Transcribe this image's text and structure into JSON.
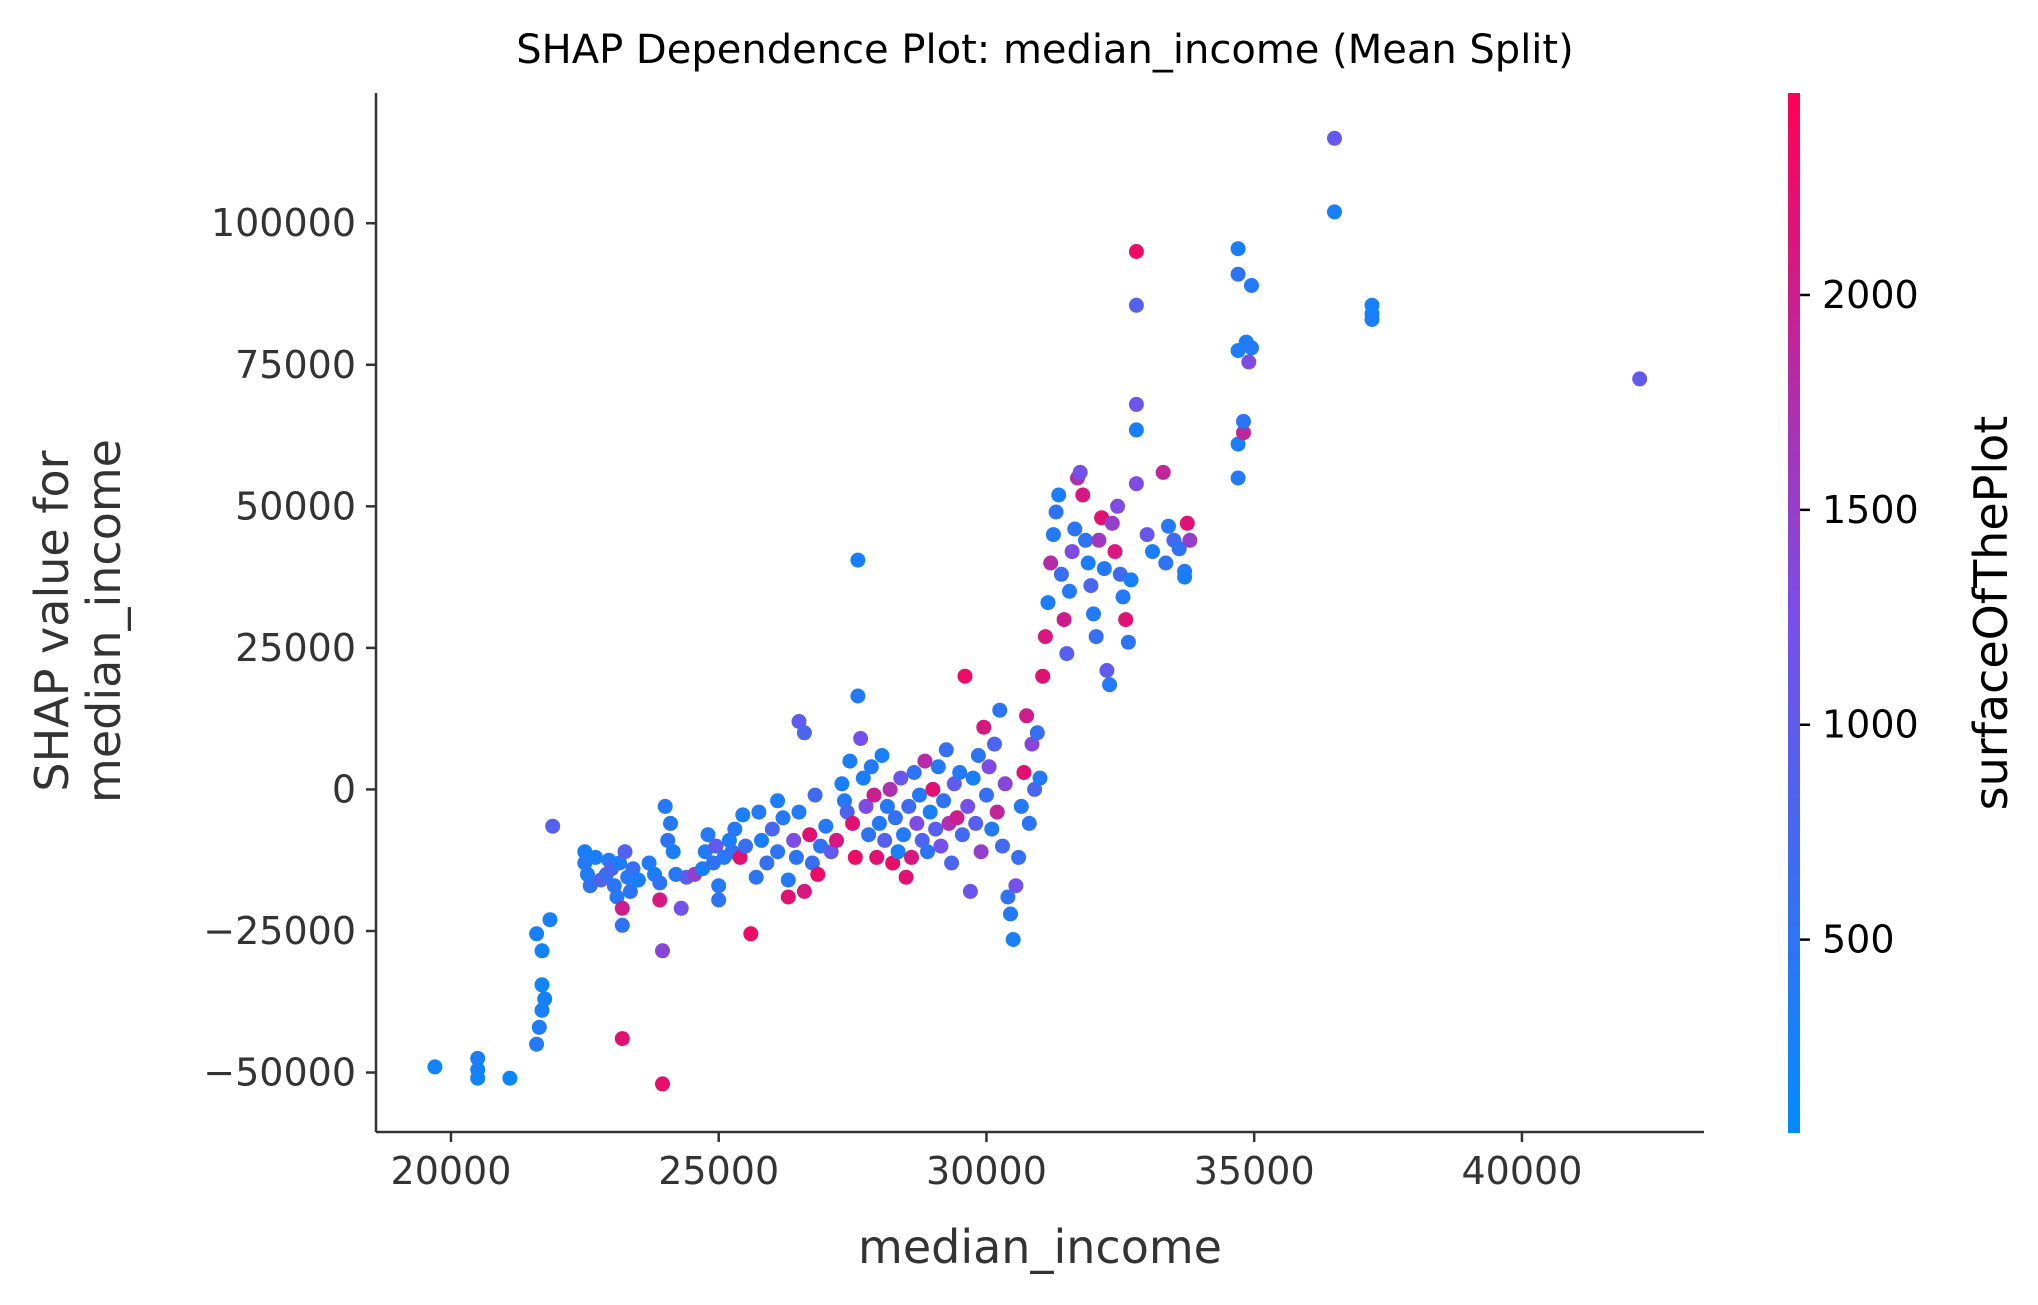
{
  "chart_data": {
    "type": "scatter",
    "title": "SHAP Dependence Plot: median_income (Mean Split)",
    "xlabel": "median_income",
    "ylabel_lines": [
      "SHAP value for",
      "median_income"
    ],
    "xlim": [
      18600,
      43400
    ],
    "ylim": [
      -60500,
      123000
    ],
    "xticks": [
      20000,
      25000,
      30000,
      35000,
      40000
    ],
    "xtick_labels": [
      "20000",
      "25000",
      "30000",
      "35000",
      "40000"
    ],
    "yticks": [
      -50000,
      -25000,
      0,
      25000,
      50000,
      75000,
      100000
    ],
    "ytick_labels": [
      "−50000",
      "−25000",
      "0",
      "25000",
      "50000",
      "75000",
      "100000"
    ],
    "grid": false,
    "colorbar": {
      "label": "surfaceOfThePlot",
      "range": [
        50,
        2470
      ],
      "ticks": [
        500,
        1000,
        1500,
        2000
      ],
      "tick_labels": [
        "500",
        "1000",
        "1500",
        "2000"
      ],
      "color_low": "#008bfb",
      "color_high": "#ff0052"
    },
    "points": [
      [
        19700,
        -49000,
        200
      ],
      [
        20500,
        -47500,
        300
      ],
      [
        20500,
        -49500,
        250
      ],
      [
        20500,
        -51000,
        200
      ],
      [
        21100,
        -51000,
        150
      ],
      [
        21600,
        -45000,
        400
      ],
      [
        21650,
        -42000,
        350
      ],
      [
        21700,
        -39000,
        300
      ],
      [
        21750,
        -37000,
        250
      ],
      [
        21700,
        -34500,
        200
      ],
      [
        21600,
        -25500,
        300
      ],
      [
        21700,
        -28500,
        250
      ],
      [
        21850,
        -23000,
        300
      ],
      [
        21900,
        -6500,
        900
      ],
      [
        22500,
        -11000,
        300
      ],
      [
        22500,
        -13000,
        400
      ],
      [
        22550,
        -15000,
        350
      ],
      [
        22600,
        -17000,
        500
      ],
      [
        22700,
        -12000,
        300
      ],
      [
        22800,
        -16000,
        900
      ],
      [
        22900,
        -15000,
        600
      ],
      [
        22950,
        -12500,
        400
      ],
      [
        23000,
        -14000,
        800
      ],
      [
        23050,
        -17000,
        500
      ],
      [
        23100,
        -19000,
        400
      ],
      [
        23150,
        -13000,
        350
      ],
      [
        23200,
        -21000,
        2000
      ],
      [
        23200,
        -24000,
        500
      ],
      [
        23200,
        -44000,
        2200
      ],
      [
        23250,
        -11000,
        900
      ],
      [
        23300,
        -15500,
        400
      ],
      [
        23350,
        -18000,
        500
      ],
      [
        23400,
        -14000,
        600
      ],
      [
        23500,
        -16000,
        300
      ],
      [
        23700,
        -13000,
        400
      ],
      [
        23800,
        -15000,
        300
      ],
      [
        23900,
        -16500,
        500
      ],
      [
        23900,
        -19500,
        2100
      ],
      [
        23950,
        -28500,
        1400
      ],
      [
        23950,
        -52000,
        2250
      ],
      [
        24000,
        -3000,
        400
      ],
      [
        24100,
        -6000,
        400
      ],
      [
        24050,
        -9000,
        500
      ],
      [
        24150,
        -11000,
        300
      ],
      [
        24200,
        -15000,
        400
      ],
      [
        24300,
        -21000,
        1200
      ],
      [
        24400,
        -15500,
        900
      ],
      [
        24550,
        -15000,
        1500
      ],
      [
        24700,
        -14000,
        300
      ],
      [
        24750,
        -11000,
        400
      ],
      [
        24800,
        -8000,
        400
      ],
      [
        24900,
        -13000,
        500
      ],
      [
        24950,
        -10000,
        1000
      ],
      [
        25000,
        -17000,
        400
      ],
      [
        25000,
        -19500,
        500
      ],
      [
        25100,
        -12000,
        400
      ],
      [
        25200,
        -9000,
        300
      ],
      [
        25250,
        -11000,
        500
      ],
      [
        25300,
        -7000,
        400
      ],
      [
        25400,
        -12000,
        2200
      ],
      [
        25450,
        -4500,
        300
      ],
      [
        25500,
        -10000,
        600
      ],
      [
        25600,
        -25500,
        2300
      ],
      [
        25700,
        -15500,
        500
      ],
      [
        25750,
        -4000,
        400
      ],
      [
        25800,
        -9000,
        300
      ],
      [
        25900,
        -13000,
        600
      ],
      [
        26000,
        -7000,
        800
      ],
      [
        26100,
        -11000,
        500
      ],
      [
        26100,
        -2000,
        300
      ],
      [
        26200,
        -5000,
        400
      ],
      [
        26300,
        -19000,
        2200
      ],
      [
        26300,
        -16000,
        400
      ],
      [
        26400,
        -9000,
        1300
      ],
      [
        26450,
        -12000,
        500
      ],
      [
        26500,
        -4000,
        400
      ],
      [
        26500,
        12000,
        1000
      ],
      [
        26600,
        -18000,
        2100
      ],
      [
        26600,
        10000,
        800
      ],
      [
        26700,
        -8000,
        2200
      ],
      [
        26750,
        -13000,
        600
      ],
      [
        26800,
        -1000,
        700
      ],
      [
        26850,
        -15000,
        2300
      ],
      [
        26900,
        -10000,
        500
      ],
      [
        27000,
        -6500,
        400
      ],
      [
        27100,
        -11000,
        1000
      ],
      [
        27200,
        -9000,
        2100
      ],
      [
        27300,
        1000,
        300
      ],
      [
        27350,
        -2000,
        400
      ],
      [
        27400,
        -4000,
        800
      ],
      [
        27450,
        5000,
        300
      ],
      [
        27500,
        -6000,
        2200
      ],
      [
        27550,
        -12000,
        2300
      ],
      [
        27600,
        40500,
        300
      ],
      [
        27600,
        16500,
        400
      ],
      [
        27650,
        9000,
        1200
      ],
      [
        27700,
        2000,
        300
      ],
      [
        27750,
        -3000,
        1300
      ],
      [
        27800,
        -8000,
        500
      ],
      [
        27850,
        4000,
        400
      ],
      [
        27900,
        -1000,
        2000
      ],
      [
        27950,
        -12000,
        2200
      ],
      [
        28000,
        -6000,
        400
      ],
      [
        28050,
        6000,
        300
      ],
      [
        28100,
        -9000,
        900
      ],
      [
        28150,
        -3000,
        400
      ],
      [
        28200,
        0,
        1700
      ],
      [
        28250,
        -13000,
        2300
      ],
      [
        28300,
        -5000,
        600
      ],
      [
        28350,
        -11000,
        300
      ],
      [
        28400,
        2000,
        1100
      ],
      [
        28450,
        -8000,
        400
      ],
      [
        28500,
        -15500,
        2200
      ],
      [
        28550,
        -3000,
        700
      ],
      [
        28600,
        -12000,
        2100
      ],
      [
        28650,
        3000,
        500
      ],
      [
        28700,
        -6000,
        1300
      ],
      [
        28750,
        -1000,
        400
      ],
      [
        28800,
        -9000,
        800
      ],
      [
        28850,
        5000,
        1800
      ],
      [
        28900,
        -11000,
        500
      ],
      [
        28950,
        -4000,
        300
      ],
      [
        29000,
        0,
        2200
      ],
      [
        29050,
        -7000,
        900
      ],
      [
        29100,
        4000,
        400
      ],
      [
        29150,
        -10000,
        1200
      ],
      [
        29200,
        -2000,
        500
      ],
      [
        29250,
        7000,
        600
      ],
      [
        29300,
        -6000,
        1700
      ],
      [
        29350,
        -13000,
        800
      ],
      [
        29400,
        1000,
        1000
      ],
      [
        29450,
        -5000,
        2000
      ],
      [
        29500,
        3000,
        400
      ],
      [
        29550,
        -8000,
        700
      ],
      [
        29600,
        20000,
        2300
      ],
      [
        29650,
        -3000,
        1200
      ],
      [
        29700,
        -18000,
        1100
      ],
      [
        29750,
        2000,
        300
      ],
      [
        29800,
        -6000,
        900
      ],
      [
        29850,
        6000,
        500
      ],
      [
        29900,
        -11000,
        1500
      ],
      [
        29950,
        11000,
        2100
      ],
      [
        30000,
        -1000,
        600
      ],
      [
        30050,
        4000,
        1300
      ],
      [
        30100,
        -7000,
        400
      ],
      [
        30150,
        8000,
        800
      ],
      [
        30200,
        -4000,
        1900
      ],
      [
        30250,
        14000,
        500
      ],
      [
        30300,
        -10000,
        700
      ],
      [
        30350,
        1000,
        1400
      ],
      [
        30400,
        -19000,
        500
      ],
      [
        30450,
        -22000,
        400
      ],
      [
        30500,
        -26500,
        300
      ],
      [
        30550,
        -17000,
        1200
      ],
      [
        30600,
        -12000,
        600
      ],
      [
        30650,
        -3000,
        400
      ],
      [
        30700,
        3000,
        2200
      ],
      [
        30750,
        13000,
        2000
      ],
      [
        30800,
        -6000,
        500
      ],
      [
        30850,
        8000,
        1400
      ],
      [
        30900,
        0,
        800
      ],
      [
        30950,
        10000,
        600
      ],
      [
        31000,
        2000,
        400
      ],
      [
        31050,
        20000,
        2200
      ],
      [
        31100,
        27000,
        2100
      ],
      [
        31150,
        33000,
        300
      ],
      [
        31200,
        40000,
        1800
      ],
      [
        31250,
        45000,
        400
      ],
      [
        31300,
        49000,
        500
      ],
      [
        31350,
        52000,
        300
      ],
      [
        31400,
        38000,
        600
      ],
      [
        31450,
        30000,
        2000
      ],
      [
        31500,
        24000,
        900
      ],
      [
        31550,
        35000,
        400
      ],
      [
        31600,
        42000,
        1300
      ],
      [
        31650,
        46000,
        500
      ],
      [
        31700,
        55000,
        1700
      ],
      [
        31750,
        56000,
        1200
      ],
      [
        31800,
        52000,
        2100
      ],
      [
        31850,
        44000,
        500
      ],
      [
        31900,
        40000,
        300
      ],
      [
        31950,
        36000,
        800
      ],
      [
        32000,
        31000,
        400
      ],
      [
        32050,
        27000,
        600
      ],
      [
        32100,
        44000,
        1600
      ],
      [
        32150,
        48000,
        2200
      ],
      [
        32200,
        39000,
        400
      ],
      [
        32250,
        21000,
        1000
      ],
      [
        32300,
        18500,
        400
      ],
      [
        32350,
        47000,
        1500
      ],
      [
        32400,
        42000,
        2100
      ],
      [
        32450,
        50000,
        1300
      ],
      [
        32500,
        38000,
        700
      ],
      [
        32550,
        34000,
        400
      ],
      [
        32600,
        30000,
        2200
      ],
      [
        32650,
        26000,
        500
      ],
      [
        32700,
        37000,
        300
      ],
      [
        32800,
        95000,
        2300
      ],
      [
        32800,
        85500,
        900
      ],
      [
        32800,
        68000,
        1100
      ],
      [
        32800,
        63500,
        300
      ],
      [
        32800,
        54000,
        1300
      ],
      [
        33000,
        45000,
        1100
      ],
      [
        33100,
        42000,
        300
      ],
      [
        33300,
        56000,
        1900
      ],
      [
        33350,
        40000,
        500
      ],
      [
        33400,
        46500,
        400
      ],
      [
        33500,
        44000,
        700
      ],
      [
        33600,
        42500,
        500
      ],
      [
        33700,
        38500,
        400
      ],
      [
        33750,
        47000,
        2200
      ],
      [
        33800,
        44000,
        1500
      ],
      [
        33700,
        37500,
        300
      ],
      [
        34700,
        95500,
        300
      ],
      [
        34700,
        91000,
        500
      ],
      [
        34700,
        77500,
        300
      ],
      [
        34700,
        61000,
        300
      ],
      [
        34700,
        55000,
        400
      ],
      [
        34800,
        63000,
        1900
      ],
      [
        34800,
        65000,
        500
      ],
      [
        34850,
        79000,
        300
      ],
      [
        34900,
        75500,
        1300
      ],
      [
        34950,
        89000,
        400
      ],
      [
        34950,
        78000,
        400
      ],
      [
        36500,
        115000,
        1000
      ],
      [
        36500,
        102000,
        300
      ],
      [
        37200,
        85500,
        300
      ],
      [
        37200,
        84000,
        200
      ],
      [
        37200,
        83000,
        300
      ],
      [
        42200,
        72500,
        1000
      ]
    ]
  }
}
